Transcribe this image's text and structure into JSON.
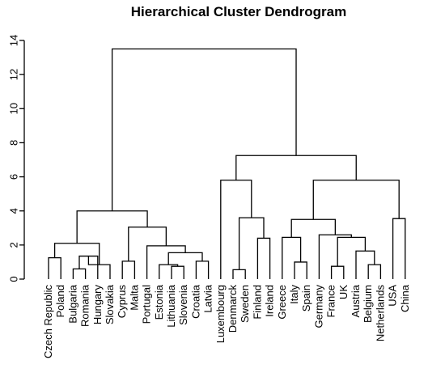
{
  "chart_data": {
    "type": "dendrogram",
    "title": "Hierarchical Cluster Dendrogram",
    "ylim": [
      0,
      14
    ],
    "yticks": [
      0,
      2,
      4,
      6,
      8,
      10,
      12,
      14
    ],
    "leaves": [
      "Czech Republic",
      "Poland",
      "Bulgaria",
      "Romania",
      "Hungary",
      "Slovakia",
      "Cyprus",
      "Malta",
      "Portugal",
      "Estonia",
      "Lithuania",
      "Slovenia",
      "Croatia",
      "Latvia",
      "Luxembourg",
      "Denmarck",
      "Sweden",
      "Finland",
      "Ireland",
      "Greece",
      "Italy",
      "Spain",
      "Germany",
      "France",
      "UK",
      "Austria",
      "Belgium",
      "Netherlands",
      "USA",
      "China"
    ],
    "merges": [
      {
        "id": "m1",
        "left": "Czech Republic",
        "right": "Poland",
        "height": 1.25
      },
      {
        "id": "m2",
        "left": "Bulgaria",
        "right": "Romania",
        "height": 0.6
      },
      {
        "id": "m3",
        "left": "m2",
        "right": "Hungary",
        "height": 1.35
      },
      {
        "id": "m4",
        "left": "m3",
        "right": "Slovakia",
        "height": 0.85
      },
      {
        "id": "m5",
        "left": "m1",
        "right": "m4",
        "height": 2.1
      },
      {
        "id": "m6",
        "left": "Cyprus",
        "right": "Malta",
        "height": 1.05
      },
      {
        "id": "m7",
        "left": "Lithuania",
        "right": "Slovenia",
        "height": 0.75
      },
      {
        "id": "m8",
        "left": "Estonia",
        "right": "m7",
        "height": 0.85
      },
      {
        "id": "m9",
        "left": "Croatia",
        "right": "Latvia",
        "height": 1.05
      },
      {
        "id": "m10",
        "left": "m8",
        "right": "m9",
        "height": 1.55
      },
      {
        "id": "m11",
        "left": "Portugal",
        "right": "m10",
        "height": 1.95
      },
      {
        "id": "m12",
        "left": "m6",
        "right": "m11",
        "height": 3.05
      },
      {
        "id": "m13",
        "left": "m5",
        "right": "m12",
        "height": 4.0
      },
      {
        "id": "m14",
        "left": "Denmarck",
        "right": "Sweden",
        "height": 0.55
      },
      {
        "id": "m15",
        "left": "Finland",
        "right": "Ireland",
        "height": 2.4
      },
      {
        "id": "m16",
        "left": "m14",
        "right": "m15",
        "height": 3.6
      },
      {
        "id": "m17",
        "left": "Luxembourg",
        "right": "m16",
        "height": 5.8
      },
      {
        "id": "m18",
        "left": "Italy",
        "right": "Spain",
        "height": 1.0
      },
      {
        "id": "m19",
        "left": "Greece",
        "right": "m18",
        "height": 2.45
      },
      {
        "id": "m20",
        "left": "France",
        "right": "UK",
        "height": 0.75
      },
      {
        "id": "m21",
        "left": "Belgium",
        "right": "Netherlands",
        "height": 0.85
      },
      {
        "id": "m22",
        "left": "Austria",
        "right": "m21",
        "height": 1.65
      },
      {
        "id": "m23",
        "left": "m20",
        "right": "m22",
        "height": 2.45
      },
      {
        "id": "m24",
        "left": "Germany",
        "right": "m23",
        "height": 2.6
      },
      {
        "id": "m25",
        "left": "m19",
        "right": "m24",
        "height": 3.5
      },
      {
        "id": "m26",
        "left": "USA",
        "right": "China",
        "height": 3.55
      },
      {
        "id": "m27",
        "left": "m25",
        "right": "m26",
        "height": 5.8
      },
      {
        "id": "m28",
        "left": "m17",
        "right": "m27",
        "height": 7.25
      },
      {
        "id": "m29",
        "left": "m13",
        "right": "m28",
        "height": 13.5
      }
    ]
  }
}
